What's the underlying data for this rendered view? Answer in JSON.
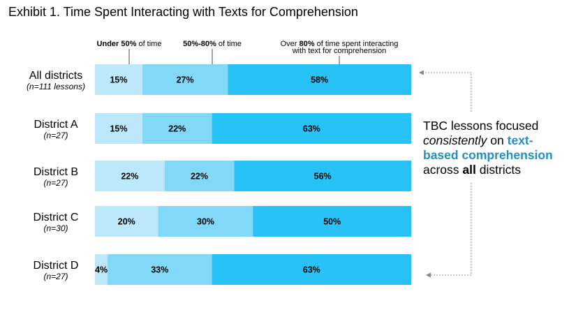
{
  "chart_data": {
    "type": "bar",
    "orientation": "horizontal",
    "stacked": true,
    "normalized": true,
    "title": "Exhibit 1. Time Spent Interacting with Texts for Comprehension",
    "categories": [
      "All districts",
      "District A",
      "District B",
      "District C",
      "District D"
    ],
    "category_notes": [
      "(n=111 lessons)",
      "(n=27)",
      "(n=27)",
      "(n=30)",
      "(n=27)"
    ],
    "series": [
      {
        "name_parts": [
          {
            "t": "Under 50%",
            "b": true
          },
          {
            "t": " of time",
            "b": false
          }
        ],
        "values": [
          15,
          15,
          22,
          20,
          4
        ],
        "labels": [
          "15%",
          "15%",
          "22%",
          "20%",
          "4%"
        ],
        "color": "#bde8fb"
      },
      {
        "name_parts": [
          {
            "t": "50%-80%",
            "b": true
          },
          {
            "t": " of time",
            "b": false
          }
        ],
        "values": [
          27,
          22,
          22,
          30,
          33
        ],
        "labels": [
          "27%",
          "22%",
          "22%",
          "30%",
          "33%"
        ],
        "color": "#82d8f7"
      },
      {
        "name_lines": [
          [
            {
              "t": "Over ",
              "b": false
            },
            {
              "t": "80%",
              "b": true
            },
            {
              "t": " of time spent interacting",
              "b": false
            }
          ],
          [
            {
              "t": "with text for comprehension",
              "b": false
            }
          ]
        ],
        "values": [
          58,
          63,
          56,
          50,
          63
        ],
        "labels": [
          "58%",
          "63%",
          "56%",
          "50%",
          "63%"
        ],
        "color": "#29c2f6"
      }
    ],
    "annotation": {
      "lines": [
        [
          {
            "t": "TBC lessons focused",
            "s": "n"
          }
        ],
        [
          {
            "t": "consistently",
            "s": "i"
          },
          {
            "t": " on ",
            "s": "n"
          },
          {
            "t": "text-",
            "s": "h"
          }
        ],
        [
          {
            "t": "based comprehension",
            "s": "h"
          }
        ],
        [
          {
            "t": "across ",
            "s": "n"
          },
          {
            "t": "all",
            "s": "b"
          },
          {
            "t": " districts",
            "s": "n"
          }
        ]
      ],
      "highlight_color": "#1f8fc7"
    },
    "connector_color": "#888888"
  }
}
